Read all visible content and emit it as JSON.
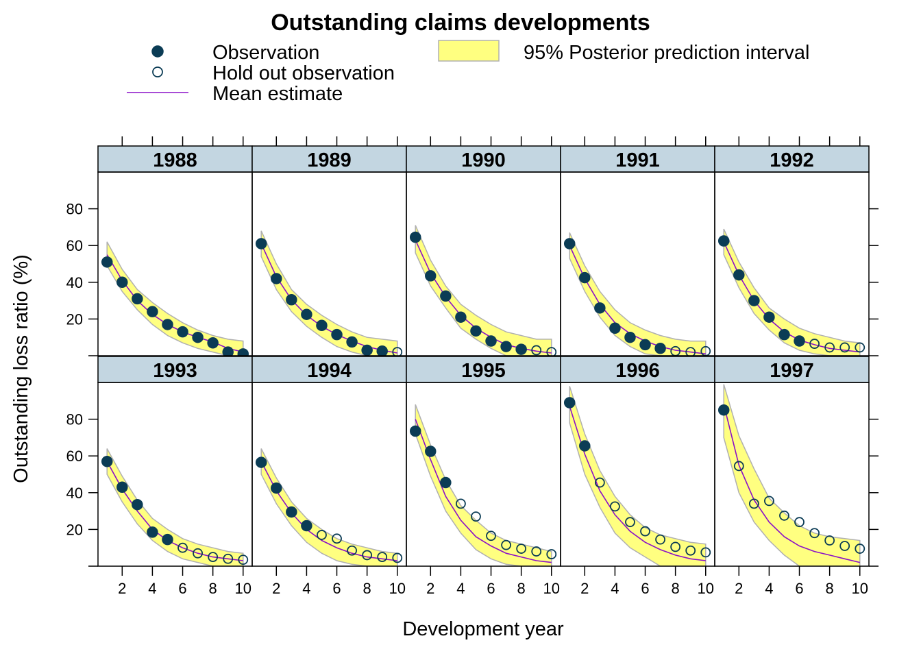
{
  "chart_data": {
    "type": "scatter",
    "title": "Outstanding claims developments",
    "xlabel": "Development year",
    "ylabel": "Outstanding loss ratio (%)",
    "xlim": [
      0.4,
      10.6
    ],
    "ylim": [
      0,
      100
    ],
    "x_ticks": [
      2,
      4,
      6,
      8,
      10
    ],
    "y_ticks": [
      20,
      40,
      60,
      80
    ],
    "grid": false,
    "legend": {
      "position": "top",
      "entries": [
        {
          "label": "Observation",
          "marker": "filled-circle"
        },
        {
          "label": "Hold out observation",
          "marker": "open-circle"
        },
        {
          "label": "Mean estimate",
          "marker": "line"
        },
        {
          "label": "95% Posterior prediction interval",
          "marker": "band"
        }
      ]
    },
    "colors": {
      "observation": "#0b3c55",
      "mean_line": "#8b10c8",
      "band_fill": "#ffff80",
      "band_edge": "#b0b0b0",
      "strip_fill": "#c3d6e1"
    },
    "panels": [
      {
        "label": "1988",
        "x": [
          1,
          2,
          3,
          4,
          5,
          6,
          7,
          8,
          9,
          10
        ],
        "observed": [
          51,
          40,
          31,
          24,
          17,
          13,
          10,
          7,
          2,
          1
        ],
        "holdout": [],
        "mean": [
          55,
          41,
          30,
          22.5,
          17,
          13,
          10,
          7.5,
          4,
          2
        ],
        "upper": [
          62,
          47,
          36,
          29,
          23,
          18,
          14,
          11,
          9,
          8
        ],
        "lower": [
          49,
          35,
          25,
          17,
          11,
          7,
          4,
          2,
          0,
          0
        ]
      },
      {
        "label": "1989",
        "x": [
          1,
          2,
          3,
          4,
          5,
          6,
          7,
          8,
          9,
          10
        ],
        "observed": [
          61,
          42,
          30.5,
          22.5,
          16.5,
          11.5,
          7.5,
          3,
          2.5
        ],
        "holdout": [
          2
        ],
        "mean": [
          61,
          43,
          30.5,
          22,
          16,
          11.5,
          8,
          5,
          3,
          1.5
        ],
        "upper": [
          68,
          50,
          36,
          28,
          22,
          17,
          13,
          10,
          9,
          8
        ],
        "lower": [
          54,
          36,
          24,
          16,
          10,
          5,
          2,
          0,
          0,
          0
        ]
      },
      {
        "label": "1990",
        "x": [
          1,
          2,
          3,
          4,
          5,
          6,
          7,
          8,
          9,
          10
        ],
        "observed": [
          64.5,
          43.5,
          32.5,
          21,
          13.5,
          8,
          5,
          3.5
        ],
        "holdout": [
          3,
          2
        ],
        "mean": [
          63,
          45,
          32,
          22,
          15,
          10,
          6,
          4,
          2.5,
          1.5
        ],
        "upper": [
          71,
          52,
          38,
          28,
          22,
          17,
          13,
          11,
          9,
          9
        ],
        "lower": [
          56,
          38,
          26,
          15,
          9,
          4,
          0,
          0,
          0,
          0
        ]
      },
      {
        "label": "1991",
        "x": [
          1,
          2,
          3,
          4,
          5,
          6,
          7,
          8,
          9,
          10
        ],
        "observed": [
          61,
          42.5,
          26,
          15,
          10,
          6,
          4
        ],
        "holdout": [
          2.5,
          2,
          2.5
        ],
        "mean": [
          60,
          42,
          28,
          18,
          12,
          8,
          5,
          3,
          2,
          1
        ],
        "upper": [
          67,
          49,
          35,
          25,
          18,
          14,
          11,
          9,
          8,
          8
        ],
        "lower": [
          53,
          35,
          21,
          11,
          5,
          1,
          0,
          0,
          0,
          0
        ]
      },
      {
        "label": "1992",
        "x": [
          1,
          2,
          3,
          4,
          5,
          6,
          7,
          8,
          9,
          10
        ],
        "observed": [
          62.5,
          44,
          30,
          21,
          11.5,
          8
        ],
        "holdout": [
          6.5,
          4.5,
          4.5,
          4.5
        ],
        "mean": [
          62,
          44,
          30,
          20,
          13,
          8.5,
          6,
          4,
          3,
          2
        ],
        "upper": [
          69,
          51,
          37,
          26,
          20,
          15,
          12,
          10,
          8,
          7
        ],
        "lower": [
          55,
          37,
          23,
          14,
          7,
          3,
          1,
          0,
          0,
          0
        ]
      },
      {
        "label": "1993",
        "x": [
          1,
          2,
          3,
          4,
          5,
          6,
          7,
          8,
          9,
          10
        ],
        "observed": [
          57,
          43,
          33.5,
          18.5,
          14.5
        ],
        "holdout": [
          10,
          7,
          5,
          4,
          3.5
        ],
        "mean": [
          57,
          42,
          30,
          20,
          14,
          10,
          7,
          5,
          4,
          3
        ],
        "upper": [
          64,
          49,
          36,
          26,
          20,
          15,
          12,
          10,
          8,
          7
        ],
        "lower": [
          50,
          35,
          23,
          14,
          8,
          4,
          2,
          0,
          0,
          0
        ]
      },
      {
        "label": "1994",
        "x": [
          1,
          2,
          3,
          4,
          5,
          6,
          7,
          8,
          9,
          10
        ],
        "observed": [
          56.5,
          42.5,
          29.5,
          22
        ],
        "holdout": [
          17,
          15,
          8.5,
          6,
          5,
          4.5
        ],
        "mean": [
          57,
          41,
          29,
          20,
          14,
          10,
          7,
          5,
          4,
          3
        ],
        "upper": [
          64,
          48,
          35,
          26,
          20,
          15,
          12,
          10,
          8,
          7
        ],
        "lower": [
          50,
          34,
          22,
          13,
          7,
          3,
          1,
          0,
          0,
          0
        ]
      },
      {
        "label": "1995",
        "x": [
          1,
          2,
          3,
          4,
          5,
          6,
          7,
          8,
          9,
          10
        ],
        "observed": [
          73.5,
          62.5,
          45.5
        ],
        "holdout": [
          34,
          27,
          16.5,
          11.5,
          9.5,
          8,
          6.5
        ],
        "mean": [
          80,
          58,
          38,
          25,
          16,
          11,
          7,
          5,
          3,
          2
        ],
        "upper": [
          88,
          66,
          47,
          33,
          25,
          18,
          14,
          12,
          10,
          8
        ],
        "lower": [
          72,
          49,
          30,
          18,
          9,
          4,
          1,
          0,
          0,
          0
        ]
      },
      {
        "label": "1996",
        "x": [
          1,
          2,
          3,
          4,
          5,
          6,
          7,
          8,
          9,
          10
        ],
        "observed": [
          89,
          65.5
        ],
        "holdout": [
          45.5,
          32.5,
          24,
          19,
          14.5,
          10.5,
          8.5,
          7.5
        ],
        "mean": [
          87,
          61,
          41,
          28,
          19,
          13,
          9,
          6,
          4,
          3
        ],
        "upper": [
          98,
          72,
          52,
          38,
          28,
          21,
          17,
          15,
          13,
          12
        ],
        "lower": [
          78,
          50,
          32,
          18,
          10,
          5,
          0,
          0,
          0,
          0
        ]
      },
      {
        "label": "1997",
        "x": [
          1,
          2,
          3,
          4,
          5,
          6,
          7,
          8,
          9,
          10
        ],
        "observed": [
          85
        ],
        "holdout": [
          54.5,
          34,
          35.5,
          27.5,
          24,
          18,
          14,
          11,
          9.5
        ],
        "mean": [
          88,
          55,
          36,
          24,
          16,
          11,
          8,
          6,
          4,
          2
        ],
        "upper": [
          99,
          71,
          53,
          37,
          29,
          22,
          18,
          16,
          15,
          14
        ],
        "lower": [
          70,
          40,
          24,
          14,
          6,
          0,
          0,
          0,
          0,
          0
        ]
      }
    ]
  }
}
